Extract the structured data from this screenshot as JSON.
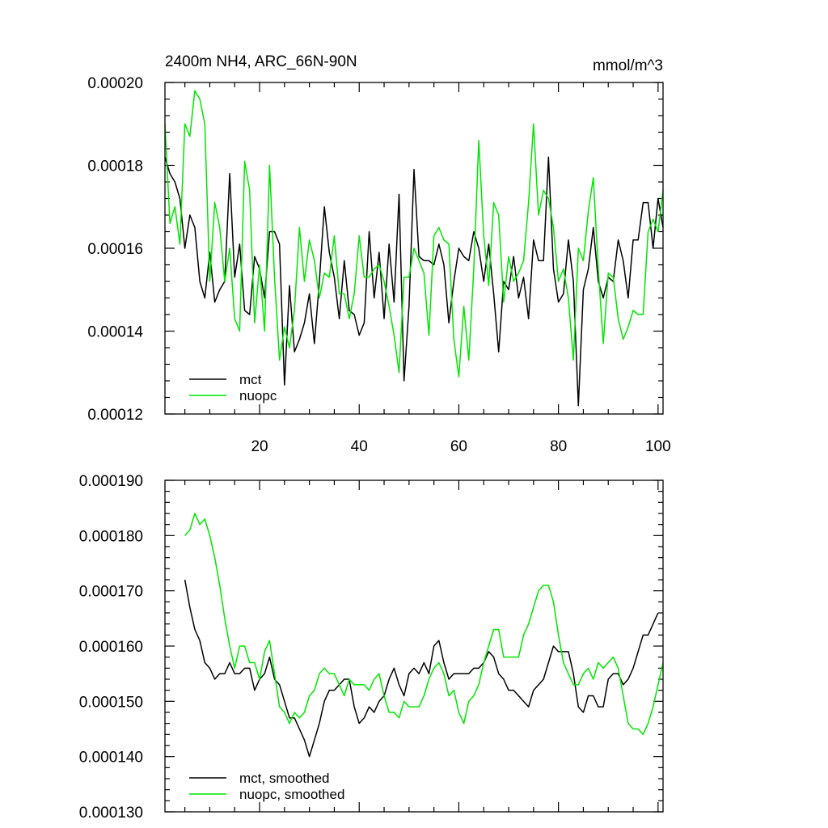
{
  "colors": {
    "mct": "#000000",
    "nuopc": "#00e600"
  },
  "chart_data": [
    {
      "type": "line",
      "title": "2400m NH4, ARC_66N-90N",
      "units": "mmol/m^3",
      "xlim": [
        1,
        101
      ],
      "ylim": [
        0.00012,
        0.0002
      ],
      "x_ticks": [
        20,
        40,
        60,
        80,
        100
      ],
      "x_tick_labels": [
        "20",
        "40",
        "60",
        "80",
        "100"
      ],
      "y_ticks": [
        0.00012,
        0.00014,
        0.00016,
        0.00018,
        0.0002
      ],
      "y_tick_labels": [
        "0.00012",
        "0.00014",
        "0.00016",
        "0.00018",
        "0.00020"
      ],
      "legend_position": "bottom-left",
      "series": [
        {
          "name": "mct",
          "color": "#000000",
          "values": [
            0.000182,
            0.000178,
            0.000176,
            0.000172,
            0.00016,
            0.000168,
            0.000165,
            0.000152,
            0.000148,
            0.000159,
            0.000147,
            0.00015,
            0.000152,
            0.000178,
            0.000153,
            0.000161,
            0.000145,
            0.000144,
            0.000158,
            0.000155,
            0.000148,
            0.000164,
            0.000164,
            0.000161,
            0.000127,
            0.000151,
            0.000135,
            0.000138,
            0.000142,
            0.000149,
            0.000137,
            0.000152,
            0.00017,
            0.000159,
            0.000153,
            0.000143,
            0.000157,
            0.000145,
            0.000144,
            0.000139,
            0.000142,
            0.000164,
            0.000148,
            0.000159,
            0.000143,
            0.000161,
            0.000147,
            0.000173,
            0.000128,
            0.000146,
            0.000179,
            0.000158,
            0.000157,
            0.000157,
            0.000156,
            0.000161,
            0.000156,
            0.000142,
            0.000152,
            0.00016,
            0.000158,
            0.000157,
            0.000164,
            0.00016,
            0.000152,
            0.000161,
            0.000149,
            0.000135,
            0.000152,
            0.00015,
            0.000158,
            0.000148,
            0.000153,
            0.000143,
            0.000162,
            0.000157,
            0.000157,
            0.000182,
            0.000155,
            0.000147,
            0.000149,
            0.000162,
            0.000152,
            0.000122,
            0.00015,
            0.000155,
            0.000165,
            0.000152,
            0.000148,
            0.000153,
            0.000152,
            0.000162,
            0.000157,
            0.000148,
            0.000162,
            0.000162,
            0.000171,
            0.000171,
            0.00016,
            0.000172,
            0.000165
          ]
        },
        {
          "name": "nuopc",
          "color": "#00e600",
          "values": [
            0.00019,
            0.000166,
            0.00017,
            0.000161,
            0.00019,
            0.000187,
            0.000198,
            0.000196,
            0.00019,
            0.000152,
            0.000171,
            0.000165,
            0.000152,
            0.00016,
            0.000143,
            0.00014,
            0.000181,
            0.000174,
            0.000142,
            0.000156,
            0.00014,
            0.00018,
            0.000153,
            0.000133,
            0.000141,
            0.000136,
            0.000145,
            0.000165,
            0.000152,
            0.000162,
            0.000157,
            0.000148,
            0.000154,
            0.000153,
            0.000163,
            0.000149,
            0.000149,
            0.000143,
            0.000149,
            0.000163,
            0.000153,
            0.000153,
            0.000155,
            0.000156,
            0.000152,
            0.000146,
            0.000139,
            0.00013,
            0.000153,
            0.000153,
            0.00016,
            0.000157,
            0.000154,
            0.000139,
            0.000163,
            0.000165,
            0.000162,
            0.000161,
            0.000138,
            0.000129,
            0.000146,
            0.000133,
            0.000155,
            0.000186,
            0.000163,
            0.000151,
            0.000171,
            0.000168,
            0.000147,
            0.000158,
            0.000152,
            0.000154,
            0.000157,
            0.000171,
            0.00019,
            0.000168,
            0.000174,
            0.000172,
            0.000165,
            0.000152,
            0.000155,
            0.000148,
            0.000133,
            0.00016,
            0.000157,
            0.000169,
            0.000177,
            0.000155,
            0.000137,
            0.000154,
            0.000153,
            0.000143,
            0.000138,
            0.000141,
            0.000145,
            0.000144,
            0.000144,
            0.000164,
            0.000167,
            0.000164,
            0.000174
          ]
        }
      ]
    },
    {
      "type": "line",
      "title": "",
      "units": "",
      "xlim": [
        1,
        101
      ],
      "ylim": [
        0.00013,
        0.00019
      ],
      "x_ticks": [
        20,
        40,
        60,
        80,
        100
      ],
      "x_tick_labels": [],
      "y_ticks": [
        0.00013,
        0.00014,
        0.00015,
        0.00016,
        0.00017,
        0.00018,
        0.00019
      ],
      "y_tick_labels": [
        "0.000130",
        "0.000140",
        "0.000150",
        "0.000160",
        "0.000170",
        "0.000180",
        "0.000190"
      ],
      "legend_position": "bottom-left",
      "series": [
        {
          "name": "mct, smoothed",
          "color": "#000000",
          "x_start": 5,
          "values": [
            0.000172,
            0.000167,
            0.000163,
            0.000161,
            0.000157,
            0.000156,
            0.000154,
            0.000155,
            0.000155,
            0.000157,
            0.000155,
            0.000155,
            0.000156,
            0.000156,
            0.000152,
            0.000154,
            0.000155,
            0.000158,
            0.000154,
            0.000153,
            0.00015,
            0.000147,
            0.000147,
            0.000145,
            0.000143,
            0.00014,
            0.000143,
            0.000146,
            0.00015,
            0.000152,
            0.000152,
            0.000153,
            0.000154,
            0.000154,
            0.000149,
            0.000146,
            0.000147,
            0.000149,
            0.000148,
            0.00015,
            0.000151,
            0.000154,
            0.000156,
            0.000153,
            0.000151,
            0.000155,
            0.000156,
            0.000155,
            0.000157,
            0.000155,
            0.00016,
            0.000161,
            0.000157,
            0.000154,
            0.000155,
            0.000155,
            0.000155,
            0.000155,
            0.000156,
            0.000156,
            0.000157,
            0.000159,
            0.000158,
            0.000155,
            0.000154,
            0.000152,
            0.000152,
            0.000151,
            0.00015,
            0.000149,
            0.000152,
            0.000153,
            0.000154,
            0.000157,
            0.00016,
            0.000159,
            0.000159,
            0.000159,
            0.000155,
            0.000149,
            0.000148,
            0.000151,
            0.000151,
            0.000149,
            0.000149,
            0.000154,
            0.000155,
            0.000155,
            0.000153,
            0.000154,
            0.000156,
            0.000159,
            0.000162,
            0.000162,
            0.000164,
            0.000166
          ]
        },
        {
          "name": "nuopc, smoothed",
          "color": "#00e600",
          "x_start": 5,
          "values": [
            0.00018,
            0.000181,
            0.000184,
            0.000182,
            0.000183,
            0.00018,
            0.000176,
            0.000171,
            0.000165,
            0.00016,
            0.000156,
            0.00016,
            0.00016,
            0.000157,
            0.000157,
            0.000154,
            0.000159,
            0.000161,
            0.000155,
            0.000149,
            0.000148,
            0.000146,
            0.000148,
            0.000147,
            0.000148,
            0.000151,
            0.000152,
            0.000155,
            0.000156,
            0.000155,
            0.000155,
            0.000153,
            0.000151,
            0.000154,
            0.000153,
            0.000153,
            0.000153,
            0.000152,
            0.000154,
            0.000155,
            0.000151,
            0.000148,
            0.000148,
            0.000147,
            0.00015,
            0.000149,
            0.000149,
            0.000149,
            0.000151,
            0.000154,
            0.000156,
            0.000157,
            0.000155,
            0.000151,
            0.000152,
            0.000148,
            0.000146,
            0.00015,
            0.000151,
            0.000153,
            0.000157,
            0.00016,
            0.000163,
            0.000163,
            0.000158,
            0.000158,
            0.000158,
            0.000158,
            0.000162,
            0.000164,
            0.000167,
            0.00017,
            0.000171,
            0.000171,
            0.000168,
            0.000162,
            0.000157,
            0.000155,
            0.000153,
            0.000153,
            0.000155,
            0.000156,
            0.000154,
            0.000157,
            0.000156,
            0.000157,
            0.000158,
            0.000156,
            0.000151,
            0.000146,
            0.000145,
            0.000145,
            0.000144,
            0.000146,
            0.000149,
            0.000153,
            0.000157
          ]
        }
      ]
    }
  ]
}
